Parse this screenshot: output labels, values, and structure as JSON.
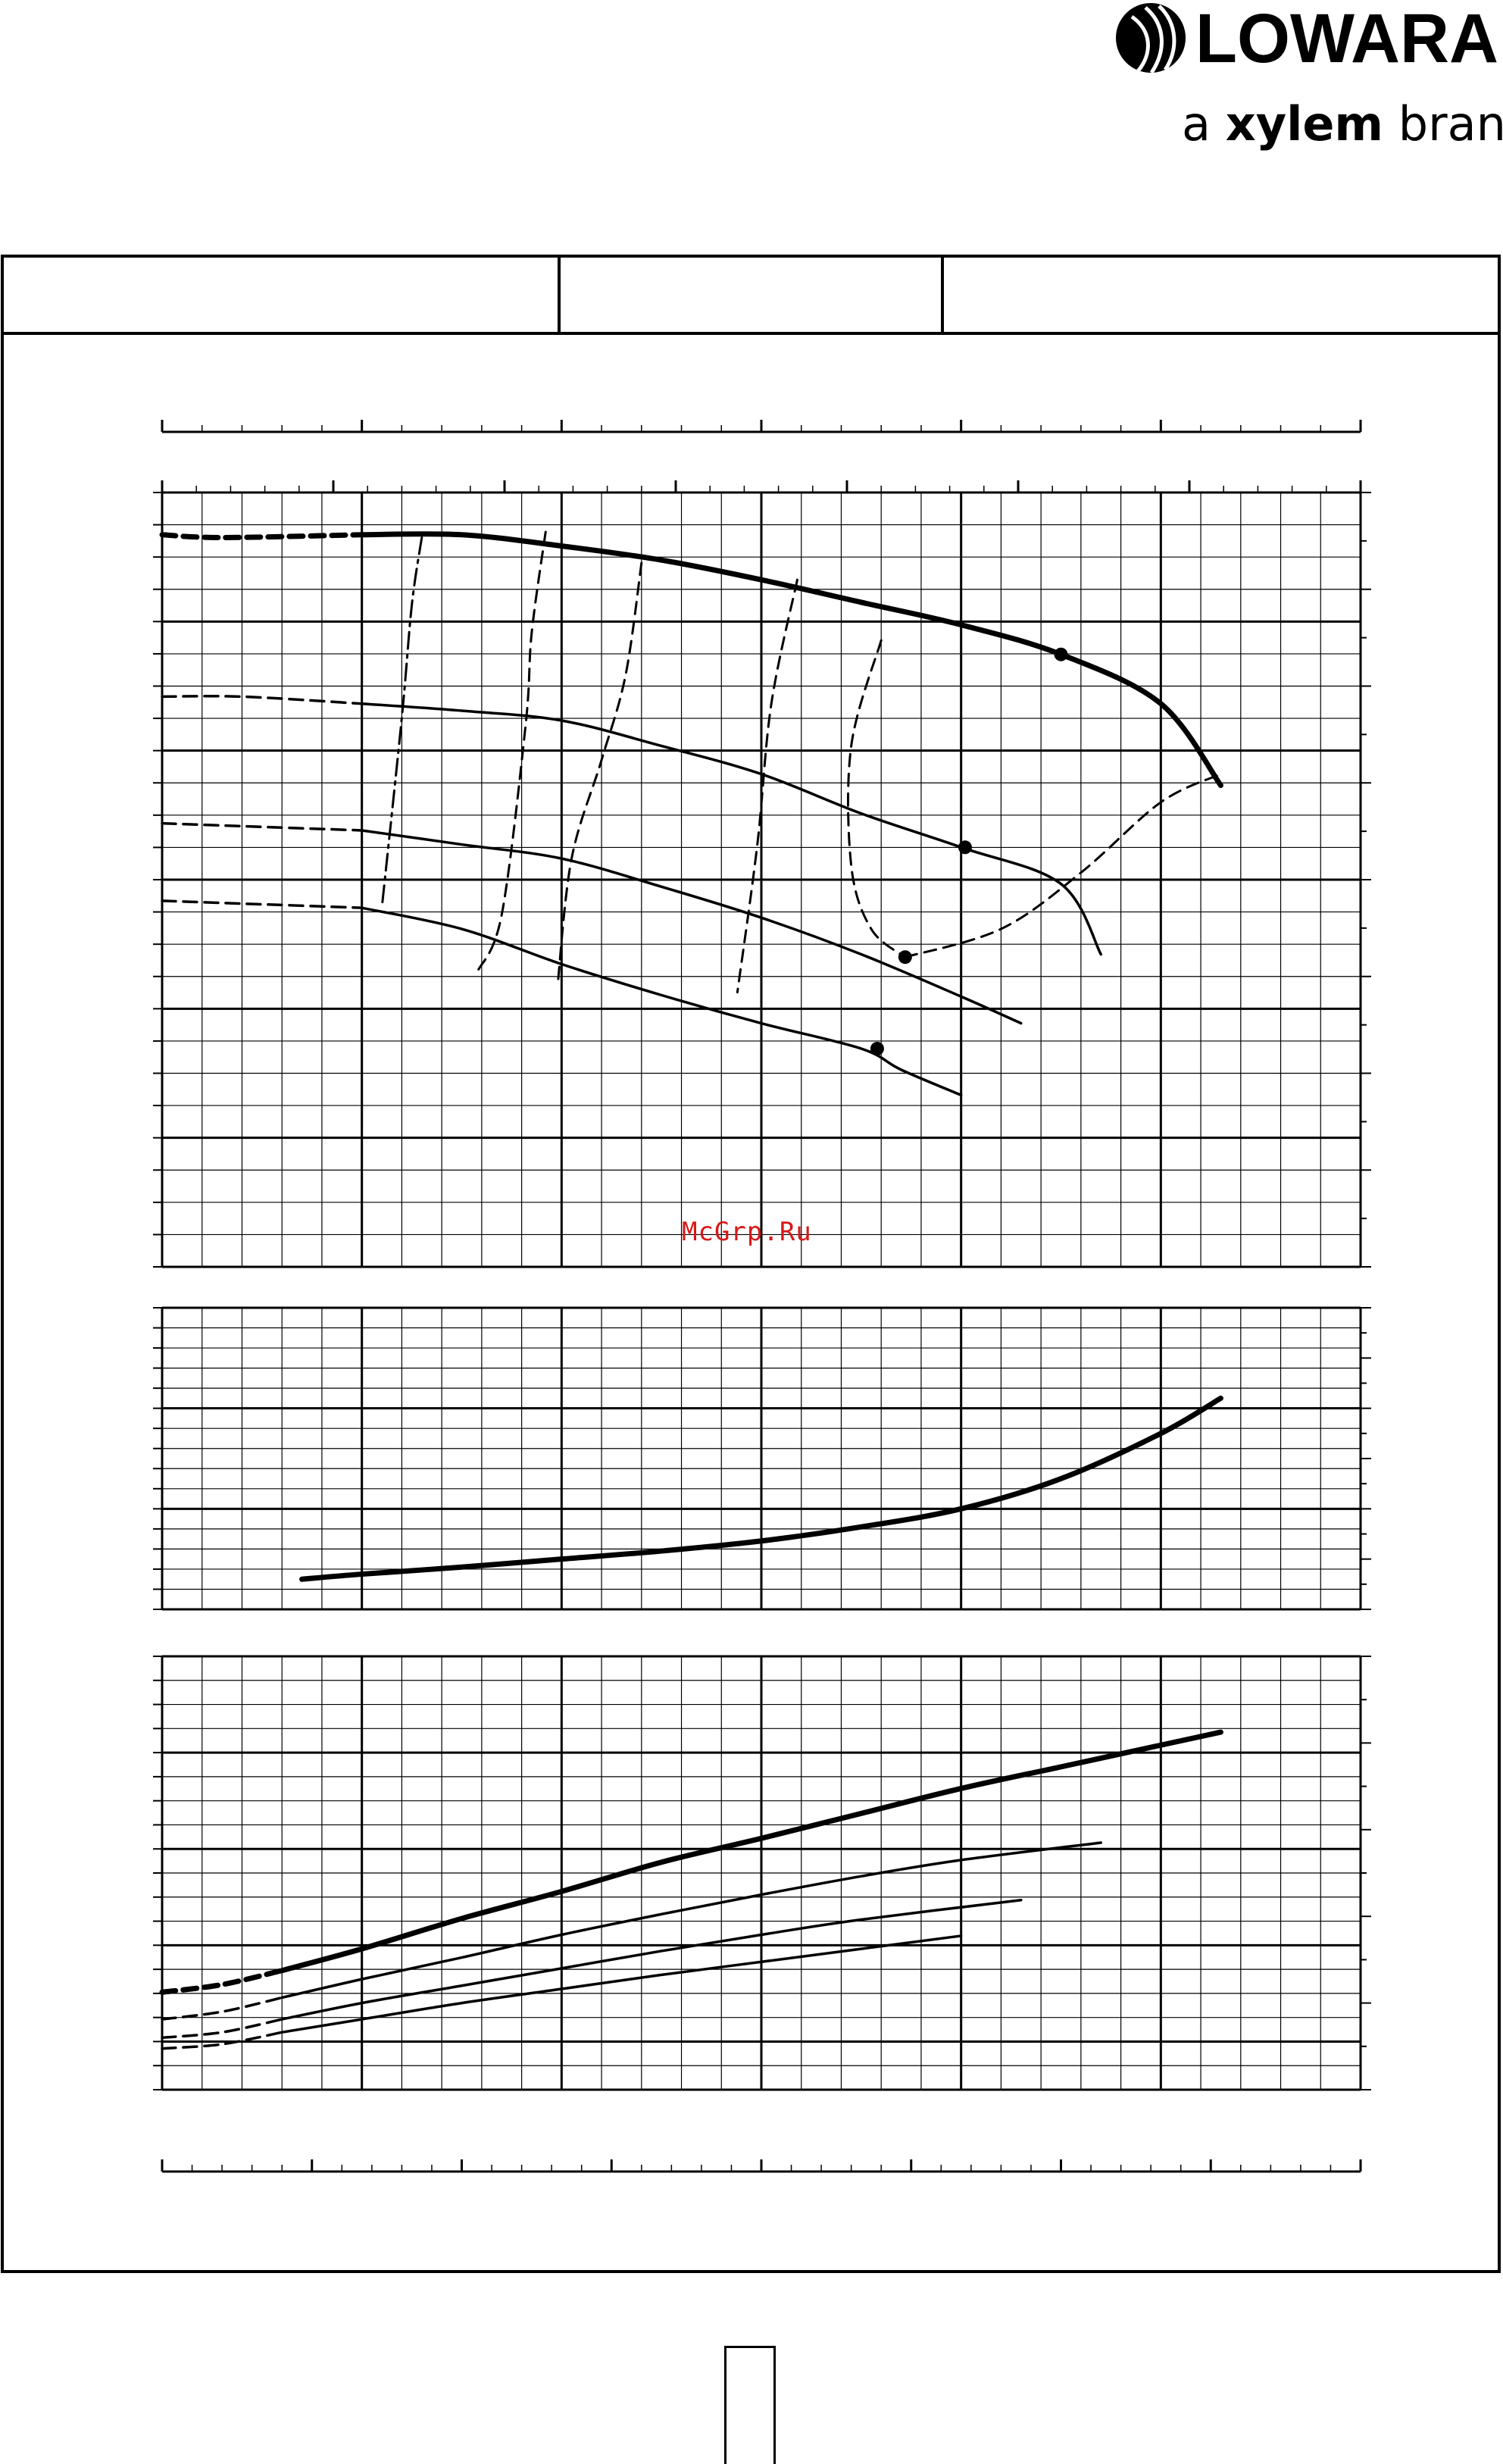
{
  "brand": {
    "name": "LOWARA",
    "tagline_prefix": "a ",
    "tagline_bold": "xylem",
    "tagline_suffix": " brand"
  },
  "watermark": "McGrp.Ru",
  "chart_data": [
    {
      "type": "line",
      "name": "head-capacity",
      "x_range": [
        0,
        6
      ],
      "y_range": [
        0,
        5.5
      ],
      "grid": true,
      "series": [
        {
          "role": "impeller-max",
          "style": "thick",
          "points": [
            [
              0,
              5.2
            ],
            [
              0.3,
              5.18
            ],
            [
              1.0,
              5.2
            ],
            [
              1.5,
              5.2
            ],
            [
              2.0,
              5.12
            ],
            [
              2.5,
              5.02
            ],
            [
              3.0,
              4.88
            ],
            [
              3.5,
              4.72
            ],
            [
              4.0,
              4.56
            ],
            [
              4.5,
              4.35
            ],
            [
              5.0,
              4.0
            ],
            [
              5.3,
              3.42
            ]
          ],
          "dashed_until_x": 0.6
        },
        {
          "role": "impeller-2",
          "style": "thin",
          "points": [
            [
              0,
              4.05
            ],
            [
              0.4,
              4.05
            ],
            [
              1.0,
              4.0
            ],
            [
              1.5,
              3.95
            ],
            [
              2.0,
              3.88
            ],
            [
              2.5,
              3.7
            ],
            [
              3.0,
              3.5
            ],
            [
              3.5,
              3.22
            ],
            [
              4.0,
              2.98
            ],
            [
              4.5,
              2.72
            ],
            [
              4.7,
              2.22
            ]
          ],
          "dashed_until_x": 0.5
        },
        {
          "role": "impeller-3",
          "style": "thin",
          "points": [
            [
              0,
              3.15
            ],
            [
              0.4,
              3.13
            ],
            [
              1.0,
              3.1
            ],
            [
              1.5,
              3.0
            ],
            [
              2.0,
              2.9
            ],
            [
              2.5,
              2.7
            ],
            [
              3.0,
              2.48
            ],
            [
              3.5,
              2.22
            ],
            [
              4.0,
              1.92
            ],
            [
              4.3,
              1.73
            ]
          ],
          "dashed_until_x": 0.5
        },
        {
          "role": "impeller-min",
          "style": "thin",
          "points": [
            [
              0,
              2.6
            ],
            [
              0.4,
              2.58
            ],
            [
              1.0,
              2.55
            ],
            [
              1.5,
              2.4
            ],
            [
              2.0,
              2.15
            ],
            [
              2.5,
              1.93
            ],
            [
              3.0,
              1.73
            ],
            [
              3.5,
              1.55
            ],
            [
              3.7,
              1.4
            ],
            [
              4.0,
              1.22
            ]
          ],
          "dashed_until_x": 0.5
        },
        {
          "role": "efficiency-1",
          "style": "dash-dot",
          "points": [
            [
              1.3,
              5.18
            ],
            [
              1.25,
              4.7
            ],
            [
              1.2,
              3.9
            ],
            [
              1.1,
              2.55
            ]
          ]
        },
        {
          "role": "efficiency-2",
          "style": "dashed",
          "points": [
            [
              1.92,
              5.22
            ],
            [
              1.85,
              4.5
            ],
            [
              1.82,
              3.85
            ],
            [
              1.7,
              2.5
            ],
            [
              1.58,
              2.1
            ]
          ]
        },
        {
          "role": "efficiency-3",
          "style": "dashed",
          "points": [
            [
              2.4,
              5.0
            ],
            [
              2.32,
              4.2
            ],
            [
              2.2,
              3.6
            ],
            [
              2.05,
              2.9
            ],
            [
              1.98,
              2.0
            ]
          ]
        },
        {
          "role": "efficiency-4",
          "style": "dashed",
          "points": [
            [
              3.18,
              4.88
            ],
            [
              3.05,
              4.0
            ],
            [
              2.98,
              3.0
            ],
            [
              2.88,
              1.95
            ]
          ]
        },
        {
          "role": "efficiency-5",
          "style": "dashed",
          "points": [
            [
              3.6,
              4.45
            ],
            [
              3.45,
              3.7
            ],
            [
              3.45,
              2.85
            ],
            [
              3.55,
              2.4
            ],
            [
              3.72,
              2.2
            ]
          ]
        },
        {
          "role": "efficiency-end",
          "style": "dashed",
          "points": [
            [
              3.72,
              2.2
            ],
            [
              4.2,
              2.4
            ],
            [
              4.6,
              2.8
            ],
            [
              5.0,
              3.3
            ],
            [
              5.3,
              3.5
            ]
          ]
        }
      ],
      "markers": [
        [
          4.5,
          4.35
        ],
        [
          4.02,
          2.98
        ],
        [
          3.72,
          2.2
        ],
        [
          3.58,
          1.55
        ]
      ]
    },
    {
      "type": "line",
      "name": "npsh",
      "x_range": [
        0,
        6
      ],
      "y_range": [
        0,
        3
      ],
      "grid": true,
      "series": [
        {
          "role": "npsh",
          "style": "thick",
          "points": [
            [
              0.7,
              0.3
            ],
            [
              1.0,
              0.35
            ],
            [
              1.5,
              0.42
            ],
            [
              2.0,
              0.5
            ],
            [
              2.5,
              0.58
            ],
            [
              3.0,
              0.68
            ],
            [
              3.5,
              0.82
            ],
            [
              4.0,
              1.0
            ],
            [
              4.5,
              1.3
            ],
            [
              5.0,
              1.75
            ],
            [
              5.3,
              2.1
            ]
          ]
        }
      ]
    },
    {
      "type": "line",
      "name": "power",
      "x_range": [
        0,
        6
      ],
      "y_range": [
        0,
        4
      ],
      "grid": true,
      "series": [
        {
          "role": "power-max",
          "style": "thick",
          "points": [
            [
              0,
              0.9
            ],
            [
              0.3,
              0.97
            ],
            [
              0.6,
              1.1
            ],
            [
              1.0,
              1.3
            ],
            [
              1.5,
              1.58
            ],
            [
              2.0,
              1.83
            ],
            [
              2.5,
              2.1
            ],
            [
              3.0,
              2.32
            ],
            [
              3.5,
              2.55
            ],
            [
              4.0,
              2.78
            ],
            [
              4.5,
              2.98
            ],
            [
              5.0,
              3.18
            ],
            [
              5.3,
              3.3
            ]
          ],
          "dashed_until_x": 0.6
        },
        {
          "role": "power-2",
          "style": "thin",
          "points": [
            [
              0,
              0.65
            ],
            [
              0.3,
              0.72
            ],
            [
              0.6,
              0.85
            ],
            [
              1.0,
              1.02
            ],
            [
              1.5,
              1.22
            ],
            [
              2.0,
              1.43
            ],
            [
              2.5,
              1.62
            ],
            [
              3.0,
              1.8
            ],
            [
              3.5,
              1.97
            ],
            [
              4.0,
              2.12
            ],
            [
              4.7,
              2.28
            ]
          ],
          "dashed_until_x": 0.6
        },
        {
          "role": "power-3",
          "style": "thin",
          "points": [
            [
              0,
              0.48
            ],
            [
              0.3,
              0.53
            ],
            [
              0.6,
              0.65
            ],
            [
              1.0,
              0.8
            ],
            [
              1.5,
              0.96
            ],
            [
              2.0,
              1.12
            ],
            [
              2.5,
              1.28
            ],
            [
              3.0,
              1.43
            ],
            [
              3.5,
              1.57
            ],
            [
              4.3,
              1.75
            ]
          ],
          "dashed_until_x": 0.6
        },
        {
          "role": "power-min",
          "style": "thin",
          "points": [
            [
              0,
              0.38
            ],
            [
              0.3,
              0.42
            ],
            [
              0.6,
              0.53
            ],
            [
              1.0,
              0.65
            ],
            [
              1.5,
              0.8
            ],
            [
              2.0,
              0.93
            ],
            [
              2.5,
              1.06
            ],
            [
              3.0,
              1.18
            ],
            [
              3.5,
              1.3
            ],
            [
              4.0,
              1.42
            ]
          ],
          "dashed_until_x": 0.6
        }
      ]
    }
  ]
}
